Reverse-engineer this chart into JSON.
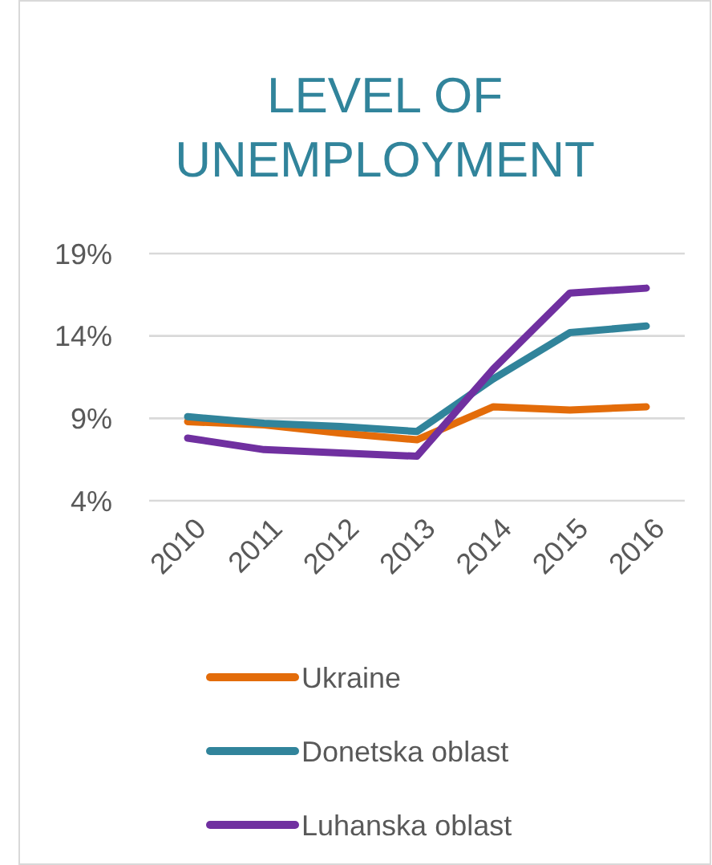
{
  "chart_data": {
    "type": "line",
    "title": "LEVEL OF UNEMPLOYMENT",
    "categories": [
      "2010",
      "2011",
      "2012",
      "2013",
      "2014",
      "2015",
      "2016"
    ],
    "series": [
      {
        "name": "Ukraine",
        "color": "#e36c0a",
        "values": [
          8.8,
          8.6,
          8.1,
          7.7,
          9.7,
          9.5,
          9.7
        ]
      },
      {
        "name": "Donetska oblast",
        "color": "#31849b",
        "values": [
          9.1,
          8.7,
          8.5,
          8.2,
          11.4,
          14.2,
          14.6
        ]
      },
      {
        "name": "Luhanska oblast",
        "color": "#7030a0",
        "values": [
          7.8,
          7.1,
          6.9,
          6.7,
          12.0,
          16.6,
          16.9
        ]
      }
    ],
    "ylim": [
      4,
      19
    ],
    "yticks": [
      {
        "value": 4,
        "label": "4%"
      },
      {
        "value": 9,
        "label": "9%"
      },
      {
        "value": 14,
        "label": "14%"
      },
      {
        "value": 19,
        "label": "19%"
      }
    ],
    "grid": "y",
    "legend": "bottom",
    "line_style": "solid",
    "marker": "none"
  }
}
